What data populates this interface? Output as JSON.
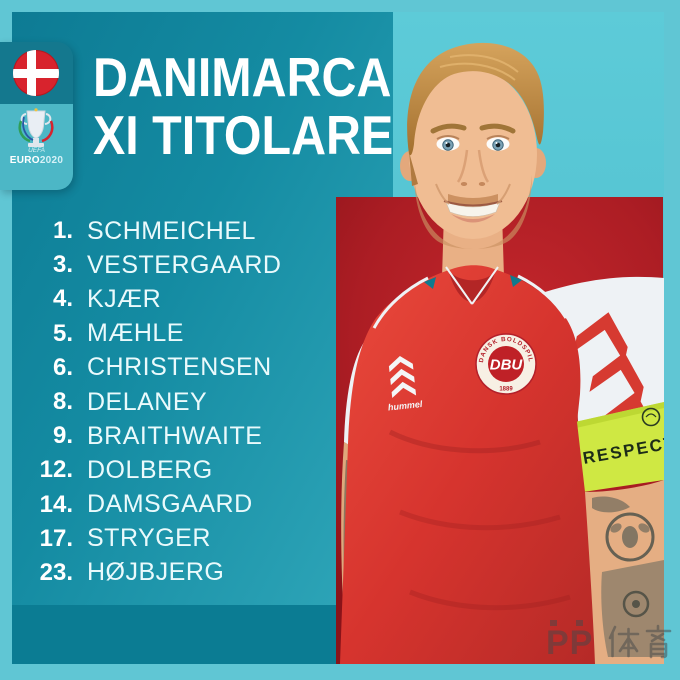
{
  "page": {
    "type": "football-starting-lineup-graphic",
    "team": "Denmark"
  },
  "header": {
    "title_line1": "DANIMARCA",
    "title_line2": "XI TITOLARE"
  },
  "badges": {
    "flag": "denmark-flag",
    "euro_uefa": "UEFA",
    "euro_word": "EURO",
    "euro_year": "2020"
  },
  "lineup": {
    "items": [
      {
        "number": "1.",
        "name": "SCHMEICHEL"
      },
      {
        "number": "3.",
        "name": "VESTERGAARD"
      },
      {
        "number": "4.",
        "name": "KJÆR"
      },
      {
        "number": "5.",
        "name": "MÆHLE"
      },
      {
        "number": "6.",
        "name": "CHRISTENSEN"
      },
      {
        "number": "8.",
        "name": "DELANEY"
      },
      {
        "number": "9.",
        "name": "BRAITHWAITE"
      },
      {
        "number": "12.",
        "name": "DOLBERG"
      },
      {
        "number": "14.",
        "name": "DAMSGAARD"
      },
      {
        "number": "17.",
        "name": "STRYGER"
      },
      {
        "number": "23.",
        "name": "HØJBJERG"
      }
    ]
  },
  "jersey": {
    "crest_main": "DBU",
    "crest_ring_top": "DANSK BOLDSPIL",
    "crest_ring_bottom": "1889",
    "brand": "hummel",
    "armband": "RESPECT"
  },
  "watermark": {
    "text": "PP体育",
    "latin": "PP"
  },
  "colors": {
    "frame": "#60c6d4",
    "teal_dark": "#0d7b94",
    "teal_light": "#4fbccb",
    "footer": "#0b7c93",
    "photo_teal": "#52c2d1",
    "red_panel": "#ac1d24",
    "jersey_red": "#d93830",
    "armband_yellow": "#cfe843",
    "flag_red": "#d8232d"
  }
}
